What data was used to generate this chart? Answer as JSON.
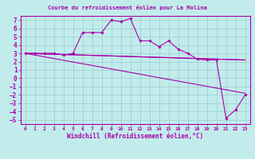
{
  "title": "Courbe du refroidissement éolien pour La Molina",
  "xlabel": "Windchill (Refroidissement éolien,°C)",
  "xlim": [
    -0.5,
    23.5
  ],
  "ylim": [
    -5.5,
    7.5
  ],
  "xticks": [
    0,
    1,
    2,
    3,
    4,
    5,
    6,
    7,
    8,
    9,
    10,
    11,
    12,
    13,
    14,
    15,
    16,
    17,
    18,
    19,
    20,
    21,
    22,
    23
  ],
  "yticks": [
    -5,
    -4,
    -3,
    -2,
    -1,
    0,
    1,
    2,
    3,
    4,
    5,
    6,
    7
  ],
  "bg_color": "#c2ecec",
  "line_color": "#aa00aa",
  "grid_color": "#99cccc",
  "main_x": [
    0,
    1,
    2,
    3,
    4,
    5,
    6,
    7,
    8,
    9,
    10,
    11,
    12,
    13,
    14,
    15,
    16,
    17,
    18,
    19,
    20,
    21,
    22,
    23
  ],
  "main_y": [
    3.0,
    3.0,
    3.0,
    3.0,
    2.8,
    3.0,
    5.5,
    5.5,
    5.5,
    7.0,
    6.8,
    7.2,
    4.5,
    4.5,
    3.8,
    4.5,
    3.5,
    3.0,
    2.3,
    2.2,
    2.2,
    -4.8,
    -3.8,
    -2.0
  ],
  "trend1_x": [
    0,
    23
  ],
  "trend1_y": [
    3.0,
    2.2
  ],
  "trend2_x": [
    0,
    23
  ],
  "trend2_y": [
    3.0,
    -1.8
  ],
  "trend3_x": [
    0,
    23
  ],
  "trend3_y": [
    3.0,
    2.2
  ]
}
